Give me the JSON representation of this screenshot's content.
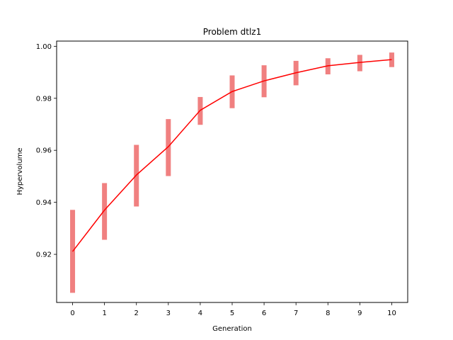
{
  "chart_data": {
    "type": "line",
    "title": "Problem dtlz1",
    "xlabel": "Generation",
    "ylabel": "Hypervolume",
    "x": [
      0,
      1,
      2,
      3,
      4,
      5,
      6,
      7,
      8,
      9,
      10
    ],
    "xticks": [
      "0",
      "1",
      "2",
      "3",
      "4",
      "5",
      "6",
      "7",
      "8",
      "9",
      "10"
    ],
    "yticks": [
      "0.92",
      "0.94",
      "0.96",
      "0.98",
      "1.00"
    ],
    "ytick_values": [
      0.92,
      0.94,
      0.96,
      0.98,
      1.0
    ],
    "xlim": [
      -0.5,
      10.5
    ],
    "ylim": [
      0.9015,
      1.002
    ],
    "grid": false,
    "series": [
      {
        "values": [
          0.9211,
          0.937,
          0.9505,
          0.9614,
          0.9754,
          0.9826,
          0.9867,
          0.9898,
          0.9925,
          0.9938,
          0.9949
        ],
        "lower": [
          0.9052,
          0.9256,
          0.9384,
          0.9501,
          0.9698,
          0.9762,
          0.9804,
          0.985,
          0.9892,
          0.9904,
          0.992
        ],
        "upper": [
          0.9371,
          0.9474,
          0.9621,
          0.972,
          0.9805,
          0.9888,
          0.9927,
          0.9944,
          0.9954,
          0.9967,
          0.9976
        ],
        "line_color": "#ff0000",
        "band_color": "#f08080"
      }
    ]
  }
}
